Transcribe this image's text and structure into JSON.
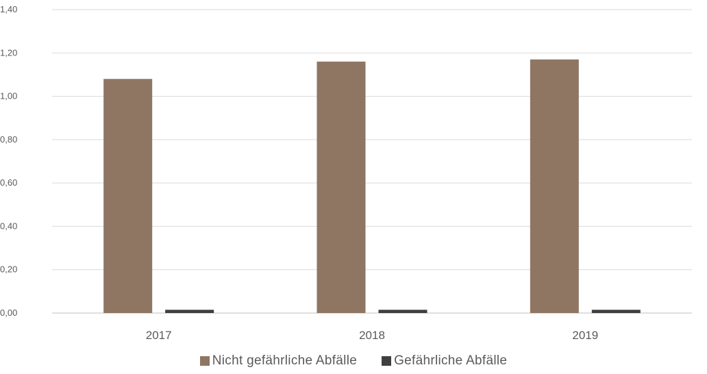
{
  "chart_data": {
    "type": "bar",
    "categories": [
      "2017",
      "2018",
      "2019"
    ],
    "series": [
      {
        "name": "Nicht gefährliche Abfälle",
        "values": [
          1.08,
          1.16,
          1.17
        ],
        "color": "#8F7663"
      },
      {
        "name": "Gefährliche Abfälle",
        "values": [
          0.015,
          0.015,
          0.015
        ],
        "color": "#3F3F3F"
      }
    ],
    "y_ticks": [
      "0,00",
      "0,20",
      "0,40",
      "0,60",
      "0,80",
      "1,00",
      "1,20",
      "1,40"
    ],
    "ylim": [
      0,
      1.4
    ],
    "grid": true,
    "legend_position": "bottom",
    "title": "",
    "xlabel": "",
    "ylabel": ""
  }
}
